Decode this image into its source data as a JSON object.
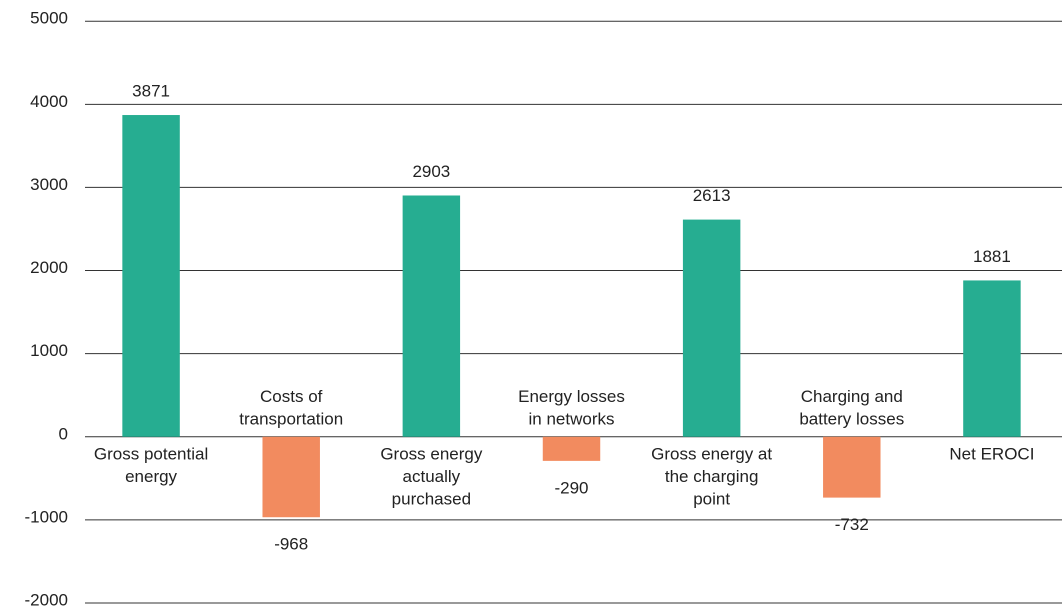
{
  "chart_data": {
    "type": "bar",
    "categories": [
      [
        "Gross potential",
        "energy"
      ],
      [
        "Costs of",
        "transportation"
      ],
      [
        "Gross energy",
        "actually",
        "purchased"
      ],
      [
        "Energy losses",
        "in networks"
      ],
      [
        "Gross energy at",
        "the charging",
        "point"
      ],
      [
        "Charging and",
        "battery losses"
      ],
      [
        "Net EROCI"
      ]
    ],
    "values": [
      3871,
      -968,
      2903,
      -290,
      2613,
      -732,
      1881
    ],
    "colors": {
      "positive": "#26ad91",
      "negative": "#f28b5f"
    },
    "ylim": [
      -2000,
      5000
    ],
    "yticks": [
      -2000,
      -1000,
      0,
      1000,
      2000,
      3000,
      4000,
      5000
    ],
    "grid": true
  }
}
